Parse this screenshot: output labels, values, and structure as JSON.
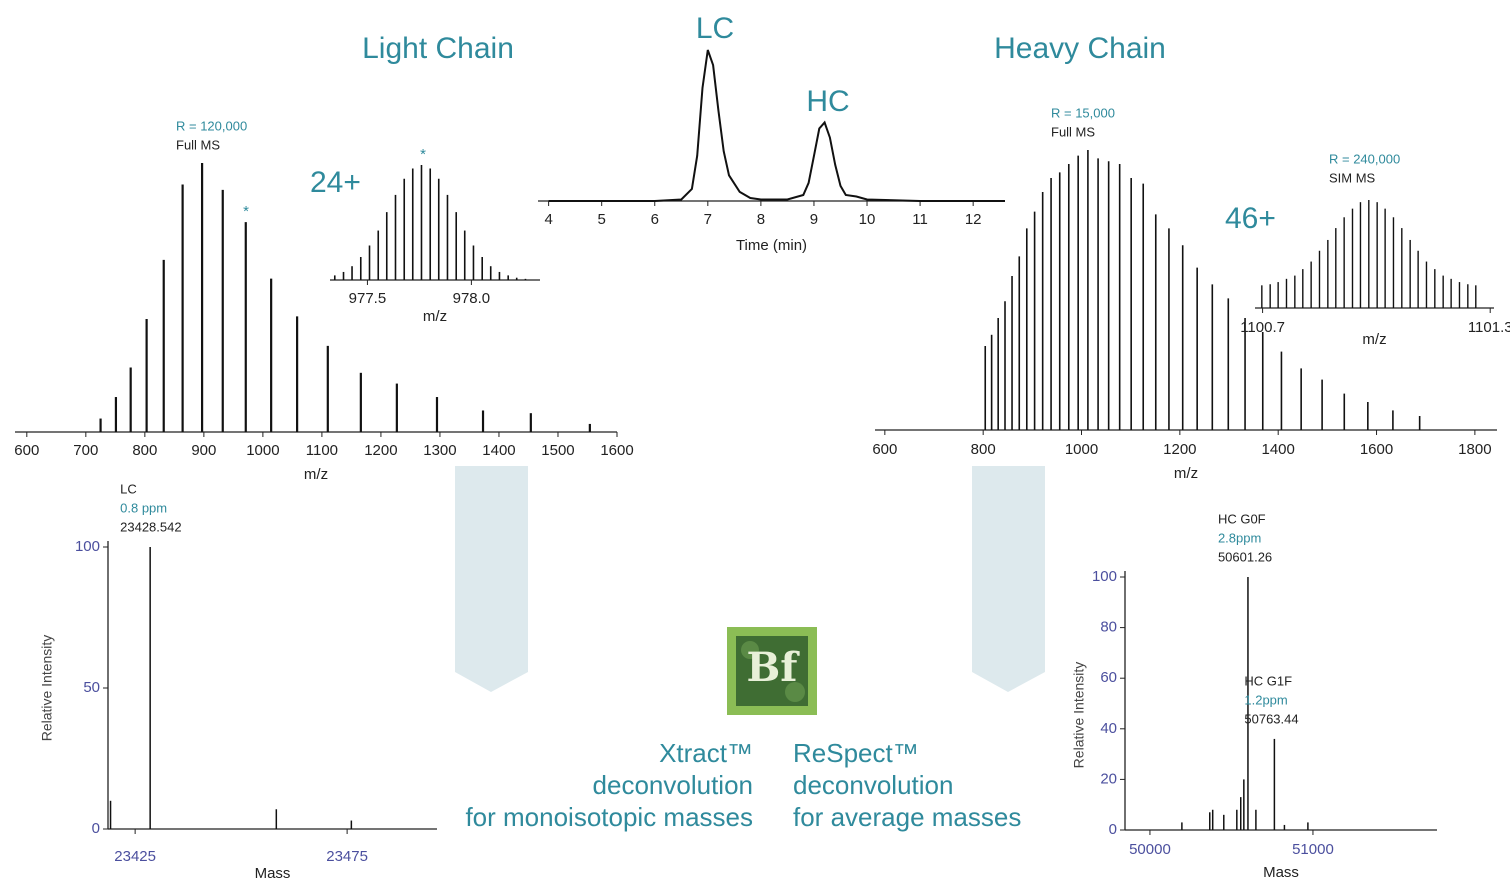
{
  "chart_data": [
    {
      "type": "line",
      "annotations": [
        "LC",
        "HC"
      ],
      "xlabel": "Time (min)",
      "x": [
        4,
        5,
        6,
        6.5,
        6.7,
        6.8,
        6.9,
        7.0,
        7.1,
        7.2,
        7.3,
        7.4,
        7.6,
        7.8,
        8.0,
        8.5,
        8.8,
        8.9,
        9.0,
        9.1,
        9.2,
        9.3,
        9.4,
        9.5,
        9.6,
        9.8,
        10.0,
        10.5,
        11,
        12,
        12.6
      ],
      "values": [
        0,
        0,
        0,
        1,
        8,
        30,
        75,
        100,
        90,
        60,
        33,
        17,
        6,
        2,
        1,
        1,
        4,
        12,
        30,
        48,
        52,
        42,
        24,
        10,
        4,
        3,
        1,
        0.5,
        0,
        0,
        0
      ],
      "xlim": [
        3.8,
        12.6
      ],
      "xticks": [
        4,
        5,
        6,
        7,
        8,
        9,
        10,
        11,
        12
      ],
      "ylim": [
        0,
        100
      ],
      "color": "#111111"
    },
    {
      "type": "stem",
      "resolution": "R = 120,000",
      "scan": "Full MS",
      "marker": "*",
      "xlabel": "m/z",
      "x": [
        725,
        751,
        776,
        803,
        832,
        864,
        897,
        932,
        971,
        1014,
        1058,
        1110,
        1166,
        1227,
        1295,
        1373,
        1454,
        1554
      ],
      "values": [
        5,
        13,
        24,
        42,
        64,
        92,
        100,
        90,
        78,
        57,
        43,
        32,
        22,
        18,
        13,
        8,
        7,
        3
      ],
      "xlim": [
        580,
        1600
      ],
      "xticks": [
        600,
        700,
        800,
        900,
        1000,
        1100,
        1200,
        1300,
        1400,
        1500,
        1600
      ],
      "ylim": [
        0,
        100
      ],
      "color": "#111111"
    },
    {
      "type": "stem",
      "charge": "24+",
      "marker": "*",
      "xlabel": "m/z",
      "x": [
        977.343,
        977.385,
        977.426,
        977.468,
        977.51,
        977.552,
        977.593,
        977.635,
        977.677,
        977.718,
        977.76,
        977.802,
        977.843,
        977.885,
        977.927,
        977.968,
        978.01,
        978.052,
        978.093,
        978.135,
        978.177,
        978.218,
        978.26
      ],
      "values": [
        4,
        7,
        12,
        20,
        30,
        43,
        59,
        74,
        88,
        97,
        100,
        97,
        88,
        74,
        59,
        43,
        30,
        20,
        12,
        7,
        4,
        2,
        1
      ],
      "xlim": [
        977.32,
        978.33
      ],
      "xticks": [
        977.5,
        {
          "value": 978,
          "label": "978.0"
        }
      ],
      "ylim": [
        0,
        100
      ],
      "color": "#111111"
    },
    {
      "type": "stem",
      "resolution": "R = 15,000",
      "scan": "Full MS",
      "xlabel": "m/z",
      "x": [
        804.2,
        817.2,
        830.5,
        844.4,
        858.7,
        873.4,
        888.7,
        904.6,
        921.0,
        938.1,
        955.7,
        974.1,
        993.2,
        1013.0,
        1033.7,
        1055.2,
        1077.6,
        1101.0,
        1125.5,
        1151.0,
        1177.8,
        1205.8,
        1235.2,
        1266.0,
        1298.5,
        1332.6,
        1368.6,
        1406.6,
        1446.7,
        1489.3,
        1534.4,
        1582.3,
        1633.3,
        1687.7
      ],
      "values": [
        30,
        34,
        40,
        46,
        55,
        62,
        72,
        78,
        85,
        90,
        92,
        95,
        98,
        100,
        97,
        96,
        95,
        90,
        88,
        77,
        72,
        66,
        58,
        52,
        47,
        40,
        35,
        28,
        22,
        18,
        13,
        10,
        7,
        5
      ],
      "xlim": [
        580,
        1845
      ],
      "xticks": [
        600,
        800,
        1000,
        1200,
        1400,
        1600,
        1800
      ],
      "ylim": [
        0,
        100
      ],
      "color": "#111111"
    },
    {
      "type": "stem",
      "resolution": "R = 240,000",
      "scan": "SIM MS",
      "charge": "46+",
      "xlabel": "m/z",
      "x": [
        1100.698,
        1100.72,
        1100.741,
        1100.763,
        1100.785,
        1100.806,
        1100.828,
        1100.85,
        1100.872,
        1100.893,
        1100.915,
        1100.937,
        1100.958,
        1100.98,
        1101.002,
        1101.023,
        1101.045,
        1101.067,
        1101.089,
        1101.11,
        1101.132,
        1101.154,
        1101.176,
        1101.197,
        1101.219,
        1101.241,
        1101.262
      ],
      "values": [
        21,
        22,
        24,
        27,
        30,
        36,
        43,
        53,
        63,
        74,
        84,
        92,
        98,
        100,
        98,
        92,
        84,
        74,
        63,
        53,
        43,
        36,
        30,
        27,
        24,
        22,
        21
      ],
      "xlim": [
        1100.68,
        1101.31
      ],
      "xticks": [
        1100.7,
        1101.3
      ],
      "ylim": [
        0,
        100
      ],
      "color": "#111111"
    },
    {
      "type": "stem",
      "xlabel": "Mass",
      "ylabel": "Relative Intensity",
      "x": [
        23419.2,
        23458.3,
        23476.0
      ],
      "values": [
        10,
        7,
        3
      ],
      "labeled_peaks": [
        {
          "name": "LC",
          "error": "0.8 ppm",
          "x": 23428.542,
          "value": 100
        }
      ],
      "xlim": [
        23418.6,
        23496.2
      ],
      "xticks": [
        23425,
        23475
      ],
      "ylim": [
        0,
        100
      ],
      "yticks": [
        0,
        50,
        100
      ],
      "color": "#111111"
    },
    {
      "type": "stem",
      "xlabel": "Mass",
      "ylabel": "Relative Intensity",
      "x": [
        50196,
        50367,
        50385,
        50453,
        50533,
        50557,
        50576,
        50650,
        50825,
        50969
      ],
      "values": [
        3,
        7,
        8,
        6,
        8,
        13,
        20,
        8,
        2,
        3
      ],
      "labeled_peaks": [
        {
          "name": "HC G0F",
          "error": "2.8ppm",
          "x": 50601.26,
          "value": 100
        },
        {
          "name": "HC G1F",
          "error": "1.2ppm",
          "x": 50763.44,
          "value": 36
        }
      ],
      "xlim": [
        49847,
        51761
      ],
      "xticks": [
        50000,
        51000
      ],
      "ylim": [
        0,
        100
      ],
      "yticks": [
        0,
        20,
        40,
        60,
        80,
        100
      ],
      "color": "#111111"
    }
  ],
  "workflow": {
    "left_title": "Light Chain",
    "right_title": "Heavy Chain",
    "logo": "Bf",
    "left_method": [
      "Xtract™",
      "deconvolution",
      "for monoisotopic masses"
    ],
    "right_method": [
      "ReSpect™",
      "deconvolution",
      "for average masses"
    ]
  }
}
